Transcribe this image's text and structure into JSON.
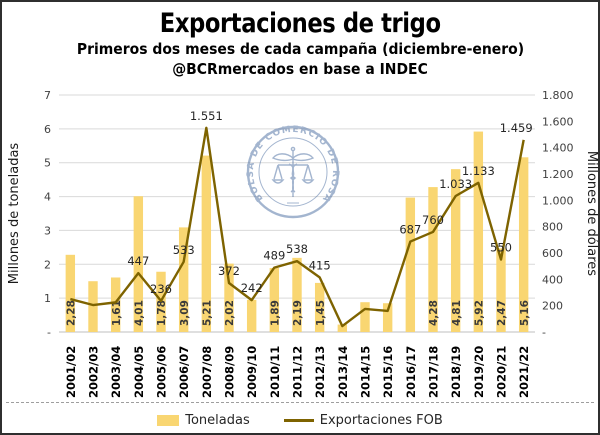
{
  "header": {
    "title": "Exportaciones de trigo",
    "subtitle": "Primeros dos meses de cada campaña (diciembre-enero)",
    "source": "@BCRmercados en base a INDEC"
  },
  "watermark": {
    "text": "BOLSA DE COMERCIO DE ROSARIO",
    "color": "#41659c"
  },
  "legend": [
    {
      "label": "Toneladas",
      "type": "bar",
      "color": "#F9D672"
    },
    {
      "label": "Exportaciones FOB",
      "type": "line",
      "color": "#7E6300"
    }
  ],
  "chart_data": {
    "type": "bar+line combo",
    "title": "Exportaciones de trigo",
    "subtitle": "Primeros dos meses de cada campaña (diciembre-enero)",
    "source": "@BCRmercados en base a INDEC",
    "categories": [
      "2001/02",
      "2002/03",
      "2003/04",
      "2004/05",
      "2005/06",
      "2006/07",
      "2007/08",
      "2008/09",
      "2009/10",
      "2010/11",
      "2011/12",
      "2012/13",
      "2013/14",
      "2014/15",
      "2015/16",
      "2016/17",
      "2017/18",
      "2018/19",
      "2019/20",
      "2020/21",
      "2021/22"
    ],
    "series": [
      {
        "name": "Toneladas",
        "type": "bar",
        "axis": "left",
        "color": "#F9D672",
        "values": [
          2.28,
          1.5,
          1.61,
          4.01,
          1.78,
          3.09,
          5.21,
          2.02,
          0.95,
          1.89,
          2.19,
          1.45,
          0.22,
          0.88,
          0.85,
          3.97,
          4.28,
          4.81,
          5.92,
          2.47,
          5.16
        ],
        "labels": [
          "2,28",
          null,
          "1,61",
          "4,01",
          "1,78",
          "3,09",
          "5,21",
          "2,02",
          null,
          "1,89",
          "2,19",
          "1,45",
          null,
          null,
          null,
          null,
          "4,28",
          "4,81",
          "5,92",
          "2,47",
          "5,16"
        ]
      },
      {
        "name": "Exportaciones FOB",
        "type": "line",
        "axis": "right",
        "color": "#7E6300",
        "values": [
          250,
          205,
          225,
          447,
          236,
          533,
          1551,
          372,
          242,
          489,
          538,
          415,
          45,
          175,
          160,
          687,
          760,
          1033,
          1133,
          550,
          1459
        ],
        "labels": [
          null,
          null,
          null,
          "447",
          "236",
          "533",
          "1.551",
          "372",
          "242",
          "489",
          "538",
          "415",
          null,
          null,
          null,
          "687",
          "760",
          "1.033",
          "1.133",
          "550",
          "1.459"
        ]
      }
    ],
    "left_axis": {
      "title": "Millones de toneladas",
      "min": 0,
      "max": 7,
      "ticks": [
        "7",
        "6",
        "5",
        "4",
        "3",
        "2",
        "1",
        "-"
      ]
    },
    "right_axis": {
      "title": "Millones de dólares",
      "min": 0,
      "max": 1800,
      "ticks": [
        "1.800",
        "1.600",
        "1.400",
        "1.200",
        "1.000",
        "800",
        "600",
        "400",
        "200",
        "-"
      ]
    },
    "grid": true,
    "grid_color": "#D9D9D9",
    "legend_position": "bottom"
  }
}
